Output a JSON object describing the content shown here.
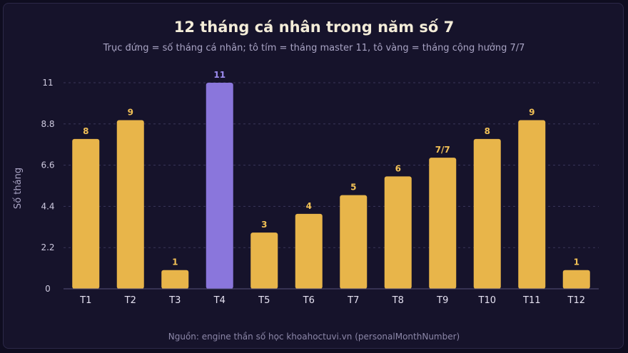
{
  "chart_data": {
    "type": "bar",
    "title": "12 tháng cá nhân trong năm số 7",
    "subtitle": "Trục đứng = số tháng cá nhân; tô tím = tháng master 11, tô vàng = tháng cộng hưởng 7/7",
    "ylabel": "Số tháng",
    "source": "Nguồn: engine thần số học khoahoctuvi.vn (personalMonthNumber)",
    "categories": [
      "T1",
      "T2",
      "T3",
      "T4",
      "T5",
      "T6",
      "T7",
      "T8",
      "T9",
      "T10",
      "T11",
      "T12"
    ],
    "values": [
      8,
      9,
      1,
      11,
      3,
      4,
      5,
      6,
      7,
      8,
      9,
      1
    ],
    "data_labels": [
      "8",
      "9",
      "1",
      "11",
      "3",
      "4",
      "5",
      "6",
      "7/7",
      "8",
      "9",
      "1"
    ],
    "highlight": [
      "normal",
      "normal",
      "normal",
      "master",
      "normal",
      "normal",
      "normal",
      "normal",
      "normal",
      "normal",
      "normal",
      "normal"
    ],
    "yticks": [
      "0",
      "2.2",
      "4.4",
      "6.6",
      "8.8",
      "11"
    ],
    "ylim": [
      0,
      11
    ],
    "grid": true,
    "colors": {
      "normal": "#e8b54a",
      "master": "#8a76dc",
      "normal_label": "#f2c156",
      "master_label": "#9d8cf0"
    }
  }
}
